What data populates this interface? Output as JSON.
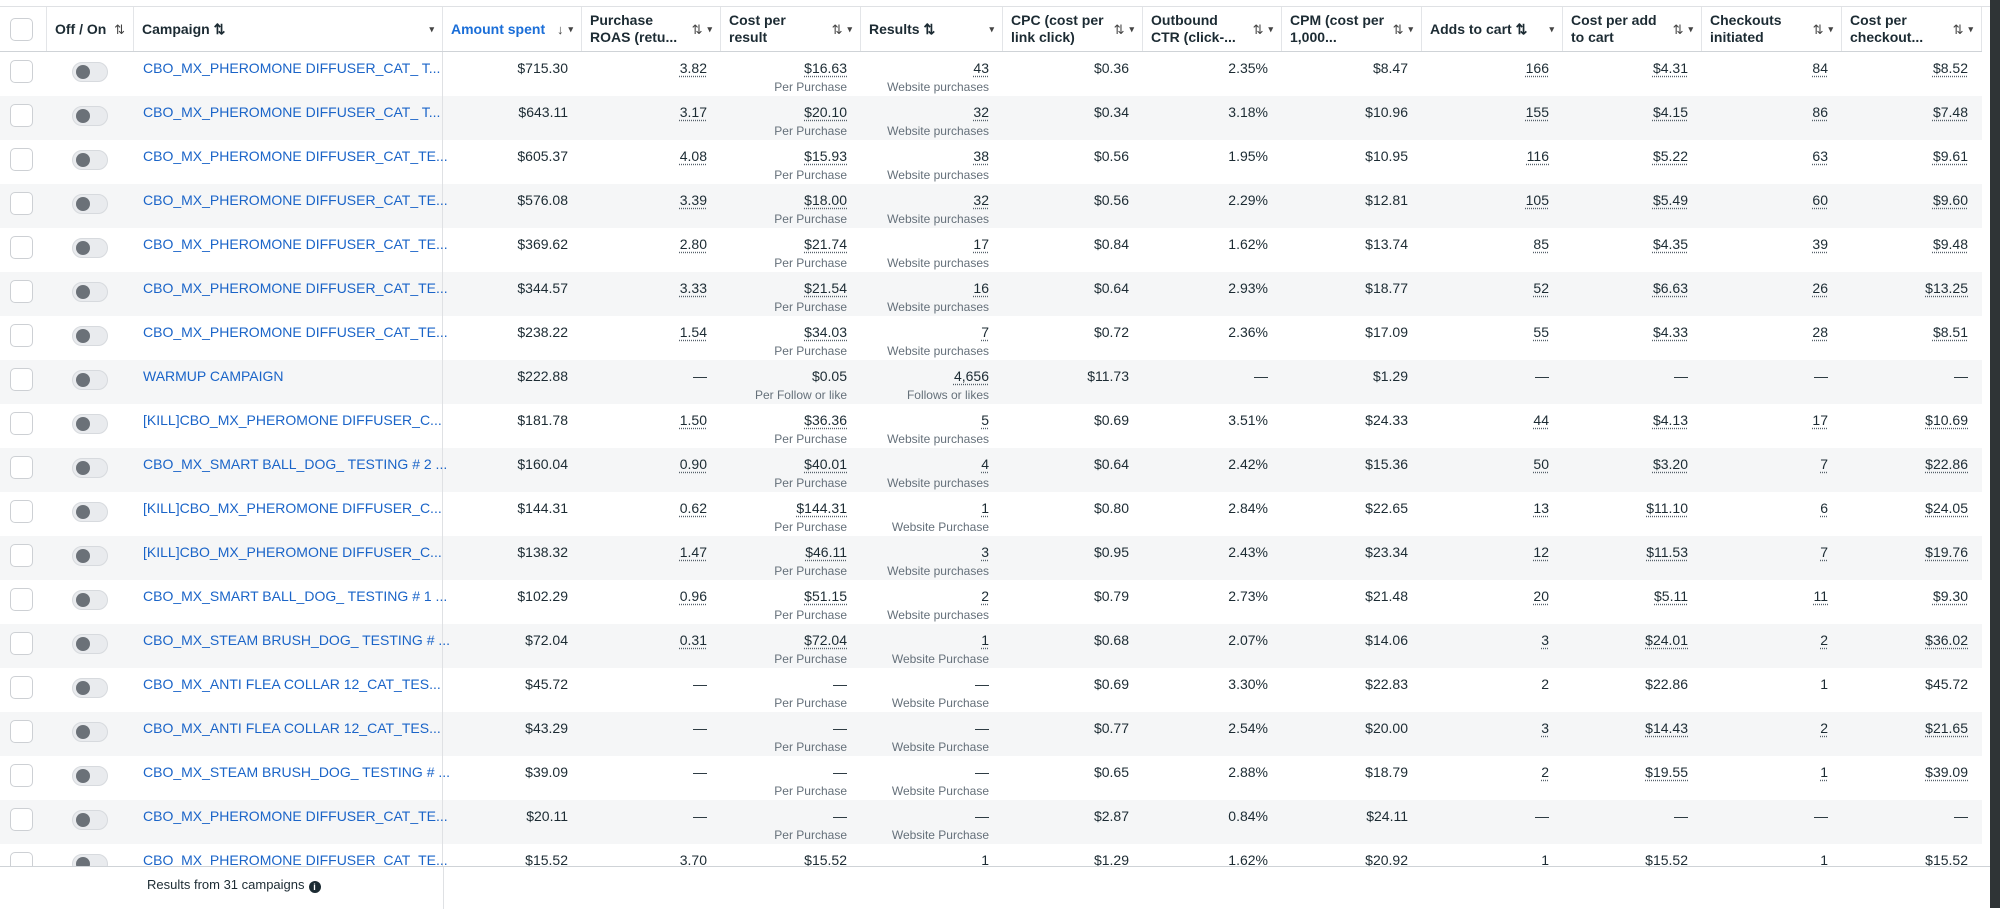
{
  "accent_color": "#1a6ed8",
  "columns": [
    {
      "key": "select",
      "label": ""
    },
    {
      "key": "toggle",
      "label": "Off / On",
      "sort": "⇅"
    },
    {
      "key": "campaign",
      "label": "Campaign ⇅",
      "caret": "▾"
    },
    {
      "key": "amount",
      "label": "Amount spent",
      "sort": "↓",
      "caret": "▾",
      "active": true
    },
    {
      "key": "roas",
      "label": "Purchase ROAS (retu...",
      "sort": "⇅",
      "caret": "▾"
    },
    {
      "key": "cpr",
      "label": "Cost per result",
      "sort": "⇅",
      "caret": "▾"
    },
    {
      "key": "results",
      "label": "Results ⇅",
      "caret": "▾"
    },
    {
      "key": "cpc",
      "label": "CPC (cost per link click)",
      "sort": "⇅",
      "caret": "▾"
    },
    {
      "key": "ctr",
      "label": "Outbound CTR (click-...",
      "sort": "⇅",
      "caret": "▾"
    },
    {
      "key": "cpm",
      "label": "CPM (cost per 1,000...",
      "sort": "⇅",
      "caret": "▾"
    },
    {
      "key": "atc",
      "label": "Adds to cart ⇅",
      "caret": "▾"
    },
    {
      "key": "cpatc",
      "label": "Cost per add to cart",
      "sort": "⇅",
      "caret": "▾"
    },
    {
      "key": "checkouts",
      "label": "Checkouts initiated",
      "sort": "⇅",
      "caret": "▾"
    },
    {
      "key": "cpco",
      "label": "Cost per checkout...",
      "sort": "⇅",
      "caret": "▾"
    }
  ],
  "rows": [
    {
      "campaign": "CBO_MX_PHEROMONE DIFFUSER_CAT_ T...",
      "amount": "$715.30",
      "roas": "3.82",
      "cpr": "$16.63",
      "cpr_sub": "Per Purchase",
      "results": "43",
      "results_sub": "Website purchases",
      "cpc": "$0.36",
      "ctr": "2.35%",
      "cpm": "$8.47",
      "atc": "166",
      "cpatc": "$4.31",
      "checkouts": "84",
      "cpco": "$8.52"
    },
    {
      "campaign": "CBO_MX_PHEROMONE DIFFUSER_CAT_ T...",
      "amount": "$643.11",
      "roas": "3.17",
      "cpr": "$20.10",
      "cpr_sub": "Per Purchase",
      "results": "32",
      "results_sub": "Website purchases",
      "cpc": "$0.34",
      "ctr": "3.18%",
      "cpm": "$10.96",
      "atc": "155",
      "cpatc": "$4.15",
      "checkouts": "86",
      "cpco": "$7.48"
    },
    {
      "campaign": "CBO_MX_PHEROMONE DIFFUSER_CAT_TE...",
      "amount": "$605.37",
      "roas": "4.08",
      "cpr": "$15.93",
      "cpr_sub": "Per Purchase",
      "results": "38",
      "results_sub": "Website purchases",
      "cpc": "$0.56",
      "ctr": "1.95%",
      "cpm": "$10.95",
      "atc": "116",
      "cpatc": "$5.22",
      "checkouts": "63",
      "cpco": "$9.61"
    },
    {
      "campaign": "CBO_MX_PHEROMONE DIFFUSER_CAT_TE...",
      "amount": "$576.08",
      "roas": "3.39",
      "cpr": "$18.00",
      "cpr_sub": "Per Purchase",
      "results": "32",
      "results_sub": "Website purchases",
      "cpc": "$0.56",
      "ctr": "2.29%",
      "cpm": "$12.81",
      "atc": "105",
      "cpatc": "$5.49",
      "checkouts": "60",
      "cpco": "$9.60"
    },
    {
      "campaign": "CBO_MX_PHEROMONE DIFFUSER_CAT_TE...",
      "amount": "$369.62",
      "roas": "2.80",
      "cpr": "$21.74",
      "cpr_sub": "Per Purchase",
      "results": "17",
      "results_sub": "Website purchases",
      "cpc": "$0.84",
      "ctr": "1.62%",
      "cpm": "$13.74",
      "atc": "85",
      "cpatc": "$4.35",
      "checkouts": "39",
      "cpco": "$9.48"
    },
    {
      "campaign": "CBO_MX_PHEROMONE DIFFUSER_CAT_TE...",
      "amount": "$344.57",
      "roas": "3.33",
      "cpr": "$21.54",
      "cpr_sub": "Per Purchase",
      "results": "16",
      "results_sub": "Website purchases",
      "cpc": "$0.64",
      "ctr": "2.93%",
      "cpm": "$18.77",
      "atc": "52",
      "cpatc": "$6.63",
      "checkouts": "26",
      "cpco": "$13.25"
    },
    {
      "campaign": "CBO_MX_PHEROMONE DIFFUSER_CAT_TE...",
      "amount": "$238.22",
      "roas": "1.54",
      "cpr": "$34.03",
      "cpr_sub": "Per Purchase",
      "results": "7",
      "results_sub": "Website purchases",
      "cpc": "$0.72",
      "ctr": "2.36%",
      "cpm": "$17.09",
      "atc": "55",
      "cpatc": "$4.33",
      "checkouts": "28",
      "cpco": "$8.51"
    },
    {
      "campaign": "WARMUP CAMPAIGN",
      "amount": "$222.88",
      "roas": "—",
      "cpr": "$0.05",
      "cpr_sub": "Per Follow or like",
      "results": "4,656",
      "results_sub": "Follows or likes",
      "cpc": "$11.73",
      "ctr": "—",
      "cpm": "$1.29",
      "atc": "—",
      "cpatc": "—",
      "checkouts": "—",
      "cpco": "—",
      "cpr_plain": true
    },
    {
      "campaign": "[KILL]CBO_MX_PHEROMONE DIFFUSER_C...",
      "amount": "$181.78",
      "roas": "1.50",
      "cpr": "$36.36",
      "cpr_sub": "Per Purchase",
      "results": "5",
      "results_sub": "Website purchases",
      "cpc": "$0.69",
      "ctr": "3.51%",
      "cpm": "$24.33",
      "atc": "44",
      "cpatc": "$4.13",
      "checkouts": "17",
      "cpco": "$10.69"
    },
    {
      "campaign": "CBO_MX_SMART BALL_DOG_ TESTING # 2 ...",
      "amount": "$160.04",
      "roas": "0.90",
      "cpr": "$40.01",
      "cpr_sub": "Per Purchase",
      "results": "4",
      "results_sub": "Website purchases",
      "cpc": "$0.64",
      "ctr": "2.42%",
      "cpm": "$15.36",
      "atc": "50",
      "cpatc": "$3.20",
      "checkouts": "7",
      "cpco": "$22.86"
    },
    {
      "campaign": "[KILL]CBO_MX_PHEROMONE DIFFUSER_C...",
      "amount": "$144.31",
      "roas": "0.62",
      "cpr": "$144.31",
      "cpr_sub": "Per Purchase",
      "results": "1",
      "results_sub": "Website Purchase",
      "cpc": "$0.80",
      "ctr": "2.84%",
      "cpm": "$22.65",
      "atc": "13",
      "cpatc": "$11.10",
      "checkouts": "6",
      "cpco": "$24.05"
    },
    {
      "campaign": "[KILL]CBO_MX_PHEROMONE DIFFUSER_C...",
      "amount": "$138.32",
      "roas": "1.47",
      "cpr": "$46.11",
      "cpr_sub": "Per Purchase",
      "results": "3",
      "results_sub": "Website purchases",
      "cpc": "$0.95",
      "ctr": "2.43%",
      "cpm": "$23.34",
      "atc": "12",
      "cpatc": "$11.53",
      "checkouts": "7",
      "cpco": "$19.76"
    },
    {
      "campaign": "CBO_MX_SMART BALL_DOG_ TESTING # 1 ...",
      "amount": "$102.29",
      "roas": "0.96",
      "cpr": "$51.15",
      "cpr_sub": "Per Purchase",
      "results": "2",
      "results_sub": "Website purchases",
      "cpc": "$0.79",
      "ctr": "2.73%",
      "cpm": "$21.48",
      "atc": "20",
      "cpatc": "$5.11",
      "checkouts": "11",
      "cpco": "$9.30"
    },
    {
      "campaign": "CBO_MX_STEAM BRUSH_DOG_ TESTING # ...",
      "amount": "$72.04",
      "roas": "0.31",
      "cpr": "$72.04",
      "cpr_sub": "Per Purchase",
      "results": "1",
      "results_sub": "Website Purchase",
      "cpc": "$0.68",
      "ctr": "2.07%",
      "cpm": "$14.06",
      "atc": "3",
      "cpatc": "$24.01",
      "checkouts": "2",
      "cpco": "$36.02"
    },
    {
      "campaign": "CBO_MX_ANTI FLEA COLLAR 12_CAT_TES...",
      "amount": "$45.72",
      "roas": "—",
      "cpr": "—",
      "cpr_sub": "Per Purchase",
      "results": "—",
      "results_sub": "Website Purchase",
      "cpc": "$0.69",
      "ctr": "3.30%",
      "cpm": "$22.83",
      "atc": "2",
      "cpatc": "$22.86",
      "checkouts": "1",
      "cpco": "$45.72",
      "plain_metrics": true
    },
    {
      "campaign": "CBO_MX_ANTI FLEA COLLAR 12_CAT_TES...",
      "amount": "$43.29",
      "roas": "—",
      "cpr": "—",
      "cpr_sub": "Per Purchase",
      "results": "—",
      "results_sub": "Website Purchase",
      "cpc": "$0.77",
      "ctr": "2.54%",
      "cpm": "$20.00",
      "atc": "3",
      "cpatc": "$14.43",
      "checkouts": "2",
      "cpco": "$21.65"
    },
    {
      "campaign": "CBO_MX_STEAM BRUSH_DOG_ TESTING # ...",
      "amount": "$39.09",
      "roas": "—",
      "cpr": "—",
      "cpr_sub": "Per Purchase",
      "results": "—",
      "results_sub": "Website Purchase",
      "cpc": "$0.65",
      "ctr": "2.88%",
      "cpm": "$18.79",
      "atc": "2",
      "cpatc": "$19.55",
      "checkouts": "1",
      "cpco": "$39.09"
    },
    {
      "campaign": "CBO_MX_PHEROMONE DIFFUSER_CAT_TE...",
      "amount": "$20.11",
      "roas": "—",
      "cpr": "—",
      "cpr_sub": "Per Purchase",
      "results": "—",
      "results_sub": "Website Purchase",
      "cpc": "$2.87",
      "ctr": "0.84%",
      "cpm": "$24.11",
      "atc": "—",
      "cpatc": "—",
      "checkouts": "—",
      "cpco": "—"
    },
    {
      "campaign": "CBO_MX_PHEROMONE DIFFUSER_CAT_TE...",
      "amount": "$15.52",
      "roas": "3.70",
      "cpr": "$15.52",
      "cpr_sub": "",
      "results": "1",
      "results_sub": "",
      "cpc": "$1.29",
      "ctr": "1.62%",
      "cpm": "$20.92",
      "atc": "1",
      "cpatc": "$15.52",
      "checkouts": "1",
      "cpco": "$15.52"
    }
  ],
  "footer": {
    "text": "Results from 31 campaigns",
    "info_icon": "info-icon",
    "info_glyph": "i"
  }
}
